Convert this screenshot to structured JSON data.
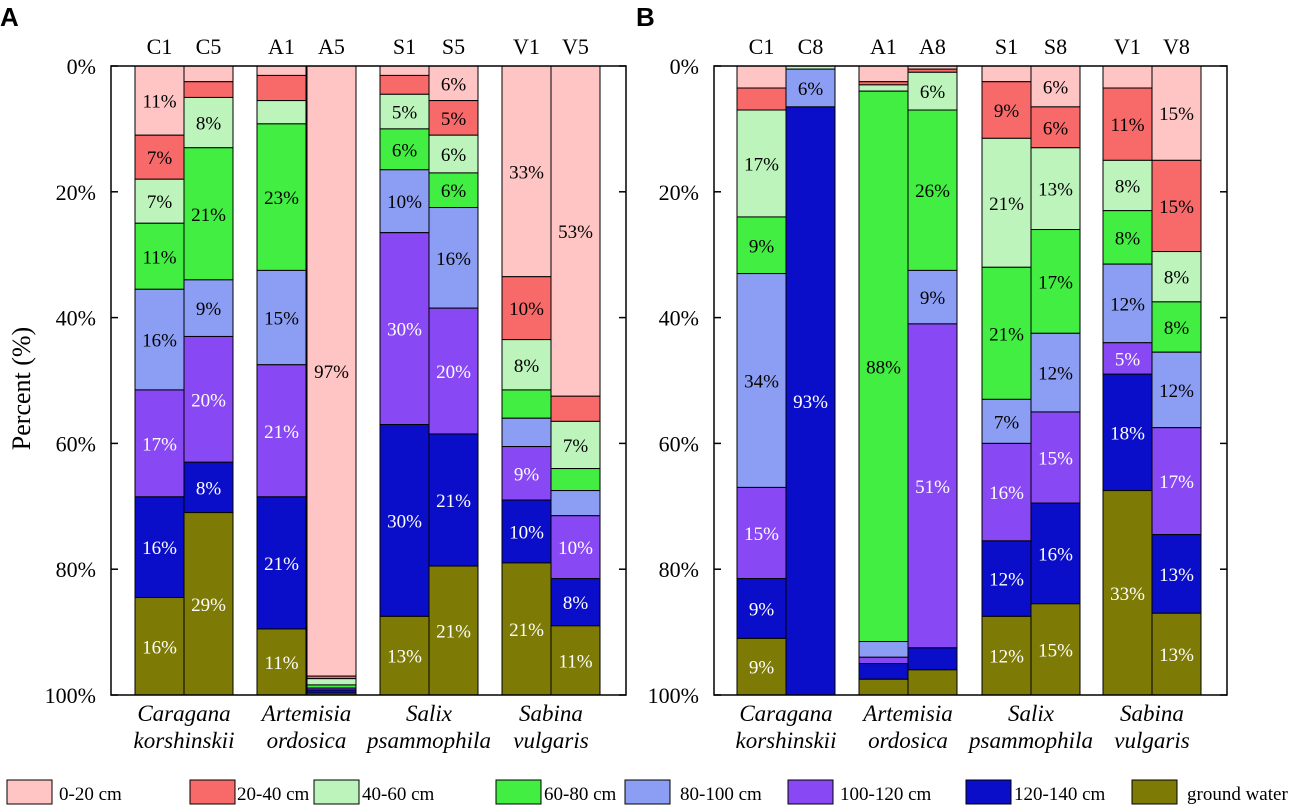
{
  "chart_data": {
    "type": "bar",
    "stacked": true,
    "orientation": "vertical",
    "ylabel": "Percent (%)",
    "yticks": [
      "0%",
      "20%",
      "40%",
      "60%",
      "80%",
      "100%"
    ],
    "ylim": [
      0,
      100
    ],
    "y_inverted": true,
    "layers": [
      {
        "name": "0-20 cm",
        "color": "#ffc4c4"
      },
      {
        "name": "20-40 cm",
        "color": "#f86a6a"
      },
      {
        "name": "40-60 cm",
        "color": "#bcf4bc"
      },
      {
        "name": "60-80 cm",
        "color": "#42ee42"
      },
      {
        "name": "80-100 cm",
        "color": "#8c9ef4"
      },
      {
        "name": "100-120 cm",
        "color": "#8848f4"
      },
      {
        "name": "120-140 cm",
        "color": "#0a0ec8"
      },
      {
        "name": "ground water",
        "color": "#7d7a05"
      }
    ],
    "panels": [
      {
        "label": "A",
        "groups": [
          {
            "species": [
              "Caragana",
              "korshinskii"
            ],
            "bars": [
              {
                "name": "C1",
                "values": [
                  11,
                  7,
                  7,
                  10.5,
                  16,
                  17,
                  16,
                  15.5
                ],
                "labels": [
                  "11%",
                  "7%",
                  "7%",
                  "11%",
                  "16%",
                  "17%",
                  "16%",
                  "16%"
                ]
              },
              {
                "name": "C5",
                "values": [
                  2.5,
                  2.5,
                  8,
                  21,
                  9,
                  20,
                  8,
                  29
                ],
                "labels": [
                  "",
                  "",
                  "8%",
                  "21%",
                  "9%",
                  "20%",
                  "8%",
                  "29%"
                ]
              }
            ]
          },
          {
            "species": [
              "Artemisia",
              "ordosica"
            ],
            "bars": [
              {
                "name": "A1",
                "values": [
                  1.5,
                  4,
                  3.7,
                  23.3,
                  15,
                  21,
                  21,
                  10.5
                ],
                "labels": [
                  "",
                  "",
                  "",
                  "23%",
                  "15%",
                  "21%",
                  "21%",
                  "11%"
                ]
              },
              {
                "name": "A5",
                "values": [
                  97,
                  0.4,
                  1,
                  0.5,
                  0,
                  0.3,
                  0.5,
                  0.3
                ],
                "labels": [
                  "97%",
                  "",
                  "",
                  "",
                  "",
                  "",
                  "",
                  ""
                ]
              }
            ]
          },
          {
            "species": [
              "Salix",
              "psammophila"
            ],
            "bars": [
              {
                "name": "S1",
                "values": [
                  1.5,
                  3,
                  5.5,
                  6.5,
                  10,
                  30.5,
                  30.5,
                  12.5
                ],
                "labels": [
                  "",
                  "",
                  "5%",
                  "6%",
                  "10%",
                  "30%",
                  "30%",
                  "13%"
                ]
              },
              {
                "name": "S5",
                "values": [
                  5.5,
                  5.5,
                  6,
                  5.5,
                  16,
                  20,
                  21,
                  20.5
                ],
                "labels": [
                  "6%",
                  "5%",
                  "6%",
                  "6%",
                  "16%",
                  "20%",
                  "21%",
                  "21%"
                ]
              }
            ]
          },
          {
            "species": [
              "Sabina",
              "vulgaris"
            ],
            "bars": [
              {
                "name": "V1",
                "values": [
                  33.5,
                  10,
                  8,
                  4.5,
                  4.5,
                  8.5,
                  10,
                  21
                ],
                "labels": [
                  "33%",
                  "10%",
                  "8%",
                  "",
                  "",
                  "9%",
                  "10%",
                  "21%"
                ]
              },
              {
                "name": "V5",
                "values": [
                  52.5,
                  4,
                  7.5,
                  3.5,
                  4,
                  10,
                  7.5,
                  11
                ],
                "labels": [
                  "53%",
                  "",
                  "7%",
                  "",
                  "",
                  "10%",
                  "8%",
                  "11%"
                ]
              }
            ]
          }
        ]
      },
      {
        "label": "B",
        "groups": [
          {
            "species": [
              "Caragana",
              "korshinskii"
            ],
            "bars": [
              {
                "name": "C1",
                "values": [
                  3.5,
                  3.5,
                  17,
                  9,
                  34,
                  14.5,
                  9.5,
                  9
                ],
                "labels": [
                  "",
                  "",
                  "17%",
                  "9%",
                  "34%",
                  "15%",
                  "9%",
                  "9%"
                ]
              },
              {
                "name": "C8",
                "values": [
                  0,
                  0,
                  0.5,
                  0,
                  6,
                  0,
                  93.5,
                  0
                ],
                "labels": [
                  "",
                  "",
                  "",
                  "",
                  "6%",
                  "",
                  "93%",
                  ""
                ]
              }
            ]
          },
          {
            "species": [
              "Artemisia",
              "ordosica"
            ],
            "bars": [
              {
                "name": "A1",
                "values": [
                  2.5,
                  0.5,
                  1,
                  87.5,
                  2.5,
                  1,
                  2.5,
                  2.5
                ],
                "labels": [
                  "",
                  "",
                  "",
                  "88%",
                  "",
                  "",
                  "",
                  ""
                ]
              },
              {
                "name": "A8",
                "values": [
                  0.5,
                  0.5,
                  6,
                  25.5,
                  8.5,
                  51.5,
                  3.5,
                  4
                ],
                "labels": [
                  "",
                  "",
                  "6%",
                  "26%",
                  "9%",
                  "51%",
                  "",
                  ""
                ]
              }
            ]
          },
          {
            "species": [
              "Salix",
              "psammophila"
            ],
            "bars": [
              {
                "name": "S1",
                "values": [
                  2.5,
                  9,
                  20.5,
                  21,
                  7,
                  15.5,
                  12,
                  12.5
                ],
                "labels": [
                  "",
                  "9%",
                  "21%",
                  "21%",
                  "7%",
                  "16%",
                  "12%",
                  "12%"
                ]
              },
              {
                "name": "S8",
                "values": [
                  6.5,
                  6.5,
                  13,
                  16.5,
                  12.5,
                  14.5,
                  16,
                  14.5
                ],
                "labels": [
                  "6%",
                  "6%",
                  "13%",
                  "17%",
                  "12%",
                  "15%",
                  "16%",
                  "15%"
                ]
              }
            ]
          },
          {
            "species": [
              "Sabina",
              "vulgaris"
            ],
            "bars": [
              {
                "name": "V1",
                "values": [
                  3.5,
                  11.5,
                  8,
                  8.5,
                  12.5,
                  5,
                  18.5,
                  32.5
                ],
                "labels": [
                  "",
                  "11%",
                  "8%",
                  "8%",
                  "12%",
                  "5%",
                  "18%",
                  "33%"
                ]
              },
              {
                "name": "V8",
                "values": [
                  15,
                  14.5,
                  8,
                  8,
                  12,
                  17,
                  12.5,
                  13
                ],
                "labels": [
                  "15%",
                  "15%",
                  "8%",
                  "8%",
                  "12%",
                  "17%",
                  "13%",
                  "13%"
                ]
              }
            ]
          }
        ]
      }
    ]
  }
}
